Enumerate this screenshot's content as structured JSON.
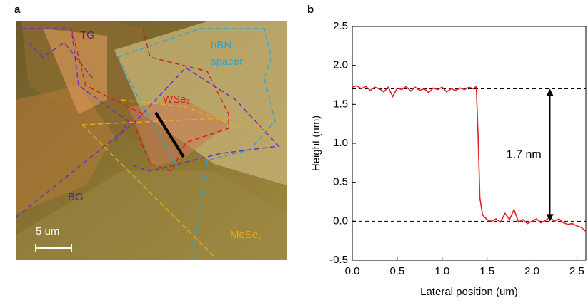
{
  "panels": {
    "a": "a",
    "b": "b"
  },
  "image": {
    "labels": {
      "tg": "TG",
      "hbn": "hBN",
      "spacer": "spacer",
      "wse2": "WSe₂",
      "bg": "BG",
      "mose2": "MoSe₂",
      "scale": "5 um"
    }
  },
  "chart_data": {
    "type": "line",
    "x_label": "Lateral position (um)",
    "y_label": "Height (nm)",
    "xlim": [
      0,
      2.6
    ],
    "ylim": [
      -0.5,
      2.5
    ],
    "xticks": [
      {
        "value": 0,
        "label": "0.0"
      },
      0.5,
      {
        "value": 1,
        "label": "1.0"
      },
      1.5,
      {
        "value": 2,
        "label": "2.0"
      },
      2.5
    ],
    "yticks": [
      -0.5,
      {
        "value": 0,
        "label": "0.0"
      },
      0.5,
      {
        "value": 1,
        "label": "1.0"
      },
      1.5,
      {
        "value": 2,
        "label": "2.0"
      },
      2.5
    ],
    "series": [
      {
        "color": "#e0202a",
        "x": [
          0,
          0.05,
          0.1,
          0.15,
          0.2,
          0.25,
          0.3,
          0.35,
          0.4,
          0.45,
          0.5,
          0.55,
          0.6,
          0.65,
          0.7,
          0.75,
          0.8,
          0.85,
          0.9,
          0.95,
          1.0,
          1.05,
          1.1,
          1.15,
          1.2,
          1.25,
          1.3,
          1.35,
          1.38,
          1.4,
          1.42,
          1.45,
          1.5,
          1.55,
          1.6,
          1.65,
          1.7,
          1.75,
          1.8,
          1.85,
          1.9,
          1.95,
          2.0,
          2.05,
          2.1,
          2.15,
          2.2,
          2.25,
          2.3,
          2.35,
          2.4,
          2.45,
          2.5,
          2.55,
          2.6
        ],
        "values": [
          1.72,
          1.74,
          1.7,
          1.73,
          1.68,
          1.72,
          1.7,
          1.66,
          1.72,
          1.6,
          1.71,
          1.69,
          1.73,
          1.67,
          1.72,
          1.68,
          1.7,
          1.65,
          1.71,
          1.69,
          1.72,
          1.66,
          1.7,
          1.68,
          1.71,
          1.69,
          1.72,
          1.7,
          1.73,
          1.1,
          0.3,
          0.08,
          0.02,
          0.0,
          0.03,
          -0.01,
          0.1,
          0.02,
          0.15,
          -0.01,
          0.02,
          -0.03,
          0.0,
          0.03,
          -0.02,
          0.01,
          0.05,
          0.0,
          0.03,
          -0.02,
          -0.04,
          -0.03,
          -0.06,
          -0.08,
          -0.13
        ]
      }
    ],
    "hlines": [
      1.7,
      0
    ],
    "annotation": {
      "text": "1.7 nm",
      "x": 2.2,
      "y_from": 0,
      "y_to": 1.7
    }
  }
}
